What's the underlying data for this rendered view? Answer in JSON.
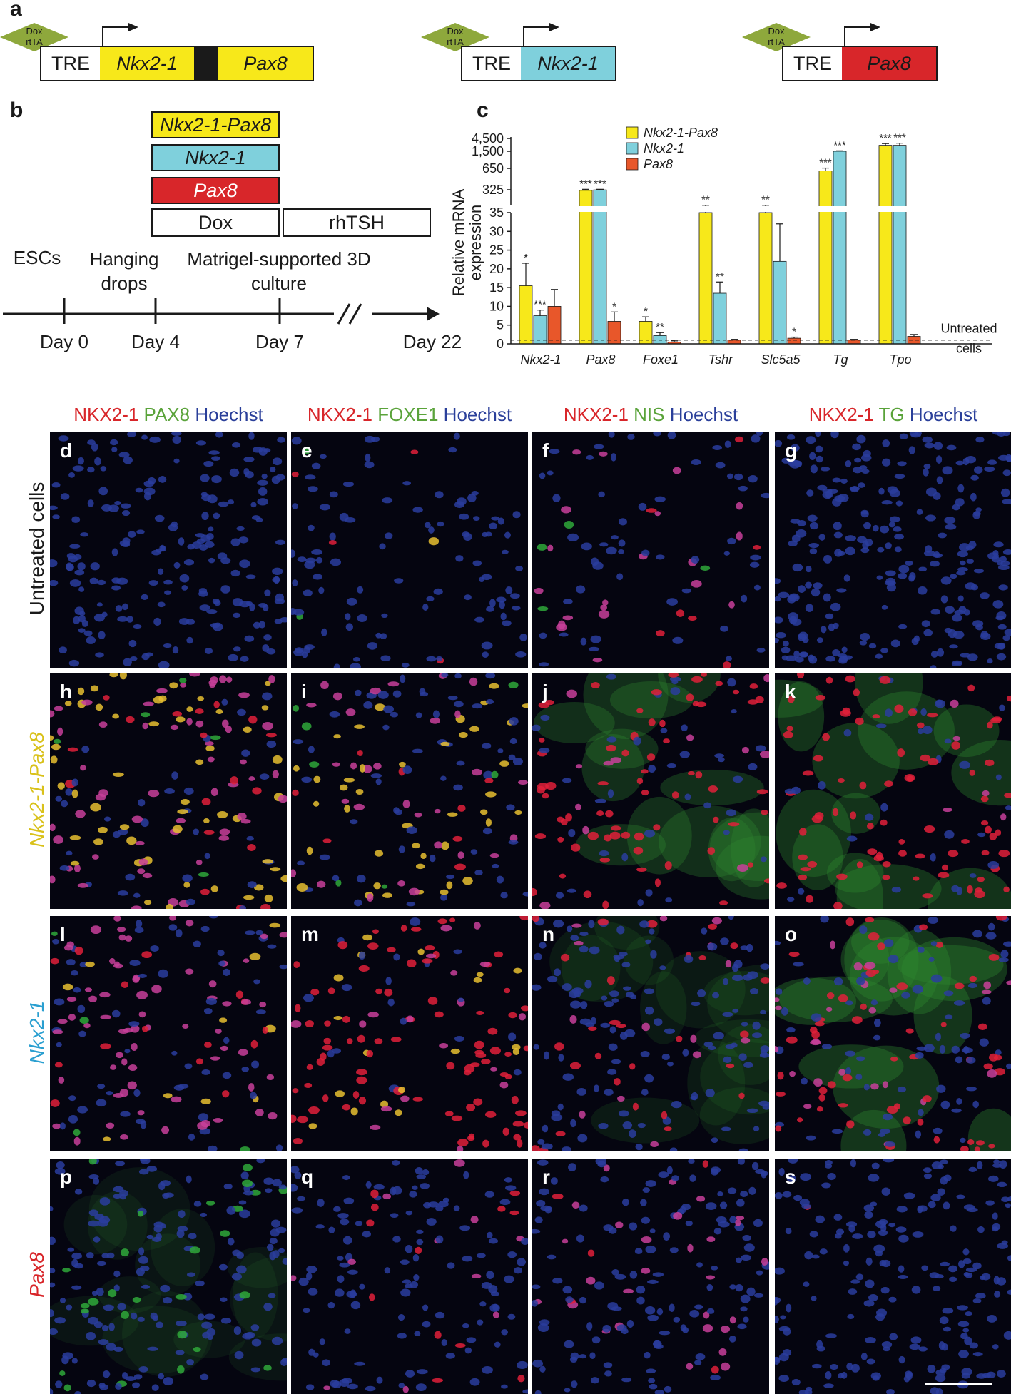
{
  "panel_letters": {
    "a": "a",
    "b": "b",
    "c": "c"
  },
  "constructs": [
    {
      "activator": "Dox rtTA",
      "promoter": "TRE",
      "genes": [
        "Nkx2-1",
        "Pax8"
      ],
      "colors": [
        "#f7e81a",
        "#f7e81a"
      ]
    },
    {
      "activator": "Dox rtTA",
      "promoter": "TRE",
      "genes": [
        "Nkx2-1"
      ],
      "colors": [
        "#7fd0dc"
      ]
    },
    {
      "activator": "Dox rtTA",
      "promoter": "TRE",
      "genes": [
        "Pax8"
      ],
      "colors": [
        "#d8262a"
      ]
    }
  ],
  "protocol": {
    "legend_boxes": [
      {
        "label": "Nkx2-1-Pax8",
        "color": "#f7e81a",
        "italic": true,
        "text_color": "#1a1a1a"
      },
      {
        "label": "Nkx2-1",
        "color": "#7fd0dc",
        "italic": true,
        "text_color": "#1a1a1a"
      },
      {
        "label": "Pax8",
        "color": "#d8262a",
        "italic": true,
        "text_color": "#ffffff"
      }
    ],
    "dox": "Dox",
    "rhtsh": "rhTSH",
    "stages": [
      "ESCs",
      "Hanging drops",
      "Matrigel-supported 3D culture"
    ],
    "days": [
      "Day 0",
      "Day 4",
      "Day 7",
      "Day 22"
    ]
  },
  "chart_data": {
    "type": "bar",
    "ylabel": "Relative mRNA expression",
    "y_ticks_lower": [
      0,
      5,
      10,
      15,
      20,
      25,
      30,
      35
    ],
    "y_ticks_upper": [
      "325",
      "650",
      "1,500",
      "4,500"
    ],
    "categories": [
      "Nkx2-1",
      "Pax8",
      "Foxe1",
      "Tshr",
      "Slc5a5",
      "Tg",
      "Tpo"
    ],
    "series": [
      {
        "name": "Nkx2-1-Pax8",
        "color": "#f7e81a",
        "values": [
          15.5,
          300,
          6,
          35,
          35,
          600,
          2500
        ],
        "errors": [
          6,
          30,
          1.2,
          1,
          1,
          60,
          400
        ],
        "stars": [
          "*",
          "***",
          "*",
          "**",
          "**",
          "***",
          "***"
        ]
      },
      {
        "name": "Nkx2-1",
        "color": "#7fd0dc",
        "values": [
          7.5,
          320,
          2.2,
          13.5,
          22,
          1500,
          2500
        ],
        "errors": [
          1.5,
          10,
          0.8,
          3,
          10,
          60,
          500
        ],
        "stars": [
          "***",
          "***",
          "**",
          "**",
          "",
          "***",
          "***"
        ]
      },
      {
        "name": "Pax8",
        "color": "#e8572a",
        "values": [
          10,
          6,
          0.5,
          1,
          1.5,
          1,
          2
        ],
        "errors": [
          4.5,
          2.5,
          0.3,
          0.2,
          0.3,
          0.2,
          0.5
        ],
        "stars": [
          "",
          "*",
          "",
          "",
          "*",
          "",
          ""
        ]
      }
    ],
    "reference_line": {
      "value": 1,
      "label": "Untreated cells"
    }
  },
  "micrographs": {
    "column_headers": [
      [
        {
          "t": "NKX2-1",
          "c": "#d8262a"
        },
        {
          "t": " PAX8",
          "c": "#5aa33a"
        },
        {
          "t": " Hoechst",
          "c": "#2a3f9a"
        }
      ],
      [
        {
          "t": "NKX2-1",
          "c": "#d8262a"
        },
        {
          "t": " FOXE1",
          "c": "#5aa33a"
        },
        {
          "t": " Hoechst",
          "c": "#2a3f9a"
        }
      ],
      [
        {
          "t": "NKX2-1",
          "c": "#d8262a"
        },
        {
          "t": " NIS",
          "c": "#5aa33a"
        },
        {
          "t": " Hoechst",
          "c": "#2a3f9a"
        }
      ],
      [
        {
          "t": "NKX2-1",
          "c": "#d8262a"
        },
        {
          "t": " TG",
          "c": "#5aa33a"
        },
        {
          "t": " Hoechst",
          "c": "#2a3f9a"
        }
      ]
    ],
    "row_labels": [
      {
        "label": "Untreated cells",
        "color": "#1a1a1a",
        "italic": false
      },
      {
        "label": "Nkx2-1-Pax8",
        "color": "#d9c11a",
        "italic": true
      },
      {
        "label": "Nkx2-1",
        "color": "#2a9fd0",
        "italic": true
      },
      {
        "label": "Pax8",
        "color": "#d8262a",
        "italic": true
      }
    ],
    "letters": [
      [
        "d",
        "e",
        "f",
        "g"
      ],
      [
        "h",
        "i",
        "j",
        "k"
      ],
      [
        "l",
        "m",
        "n",
        "o"
      ],
      [
        "p",
        "q",
        "r",
        "s"
      ]
    ]
  }
}
